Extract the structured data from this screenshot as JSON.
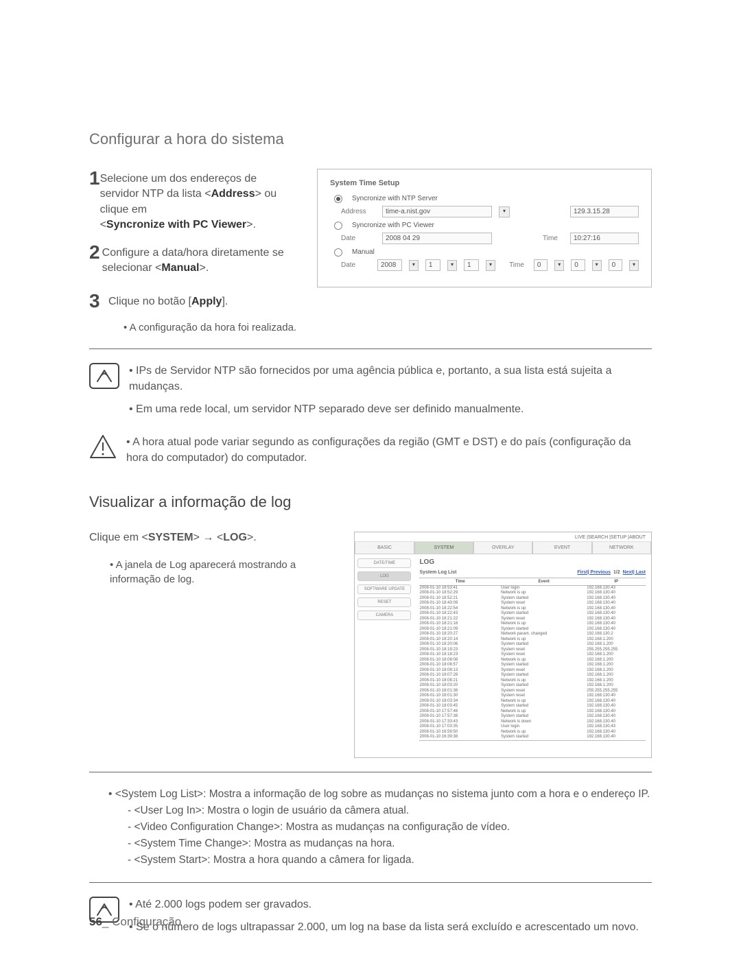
{
  "section1_title": "Configurar a hora do sistema",
  "step1": "Selecione um dos endereços de servidor NTP da lista <",
  "step1b": "Address",
  "step1c": "> ou clique em",
  "step1d": "<",
  "step1e": "Syncronize with PC Viewer",
  "step1f": ">.",
  "step2a": "Configure a data/hora diretamente se selecionar <",
  "step2b": "Manual",
  "step2c": ">.",
  "step3a": "Clique no botão [",
  "step3b": "Apply",
  "step3c": "].",
  "step3_bullet": "A configuração da hora foi realizada.",
  "panel": {
    "title": "System Time Setup",
    "ntp": "Syncronize with NTP Server",
    "addr_lbl": "Address",
    "addr_val": "time-a.nist.gov",
    "addr_ip": "129.3.15.28",
    "pc": "Syncronize with PC Viewer",
    "date_lbl": "Date",
    "date_val": "2008 04 29",
    "time_lbl": "Time",
    "time_val": "10:27:16",
    "manual": "Manual",
    "m_date": "2008",
    "m_1": "1",
    "m_2": "1",
    "m_t0": "0",
    "m_t1": "0",
    "m_t2": "0"
  },
  "note1_a": "IPs de Servidor NTP são fornecidos por uma agência pública e, portanto, a sua lista está sujeita a mudanças.",
  "note1_b": "Em uma rede local, um servidor NTP separado deve ser definido manualmente.",
  "warn": "A hora atual pode variar segundo as configurações da região (GMT e DST) e do país (configuração da hora do computador) do computador.",
  "section2_title": "Visualizar a informação de log",
  "sys_path_a": "Clique em <",
  "sys_path_b": "SYSTEM",
  "sys_path_c": "> ",
  "sys_path_arrow": "→",
  "sys_path_d": " <",
  "sys_path_e": "LOG",
  "sys_path_f": ">.",
  "log_bullet": "A janela de Log aparecerá mostrando a informação de log.",
  "log": {
    "topnav": "LIVE |SEARCH |SETUP |ABOUT",
    "tabs": [
      "BASIC",
      "SYSTEM",
      "OVERLAY",
      "EVENT",
      "NETWORK"
    ],
    "side": [
      "DATE/TIME",
      "LOG",
      "SOFTWARE UPDATE",
      "RESET",
      "CAMERA"
    ],
    "h": "LOG",
    "sub": "System Log List",
    "first": "First| Previous",
    "scroll": "1/2",
    "last": "Next| Last",
    "th": [
      "Time",
      "Event",
      "IP"
    ],
    "rows": [
      [
        "2008-01-10 18:53:41",
        "User login",
        "192.168.130.43"
      ],
      [
        "2008-01-10 18:52:29",
        "Network is up",
        "192.168.130.40"
      ],
      [
        "2008-01-10 18:52:21",
        "System started",
        "192.168.130.40"
      ],
      [
        "2008-01-10 18:43:09",
        "System reset",
        "192.168.130.40"
      ],
      [
        "2008-01-10 18:22:54",
        "Network is up",
        "192.168.130.40"
      ],
      [
        "2008-01-10 18:22:43",
        "System started",
        "192.168.130.40"
      ],
      [
        "2008-01-10 18:21:22",
        "System reset",
        "192.168.130.40"
      ],
      [
        "2008-01-10 18:21:18",
        "Network is up",
        "192.168.130.40"
      ],
      [
        "2008-01-10 18:21:09",
        "System started",
        "192.168.130.40"
      ],
      [
        "2008-01-10 18:20:27",
        "Network param. changed",
        "192.168.130.2"
      ],
      [
        "2008-01-10 18:20:14",
        "Network is up",
        "192.168.1.200"
      ],
      [
        "2008-01-10 18:20:06",
        "System started",
        "192.168.1.200"
      ],
      [
        "2008-01-10 18:19:23",
        "System reset",
        "255.255.255.255"
      ],
      [
        "2008-01-10 18:18:23",
        "System reset",
        "192.168.1.200"
      ],
      [
        "2008-01-10 18:08:08",
        "Network is up",
        "192.168.1.200"
      ],
      [
        "2008-01-10 18:08:57",
        "System started",
        "192.168.1.200"
      ],
      [
        "2008-01-10 18:08:13",
        "System reset",
        "192.168.1.200"
      ],
      [
        "2008-01-10 18:07:28",
        "System started",
        "192.168.1.200"
      ],
      [
        "2008-01-10 18:08:21",
        "Network is up",
        "192.168.1.200"
      ],
      [
        "2008-01-10 18:03:20",
        "System started",
        "192.168.1.200"
      ],
      [
        "2008-01-10 18:01:36",
        "System reset",
        "255.255.255.255"
      ],
      [
        "2008-01-10 18:01:30",
        "System reset",
        "192.168.130.40"
      ],
      [
        "2008-01-10 18:03:34",
        "Network is up",
        "192.168.130.40"
      ],
      [
        "2008-01-10 18:03:45",
        "System started",
        "192.168.130.40"
      ],
      [
        "2008-01-10 17:57:46",
        "Network is up",
        "192.168.130.40"
      ],
      [
        "2008-01-10 17:57:38",
        "System started",
        "192.168.130.40"
      ],
      [
        "2008-01-10 17:33:43",
        "Network is down",
        "192.168.130.40"
      ],
      [
        "2008-01-10 17:03:35",
        "User login",
        "192.168.130.43"
      ],
      [
        "2008-01-10 16:59:50",
        "Network is up",
        "192.168.130.40"
      ],
      [
        "2008-01-10 16:39:38",
        "System started",
        "192.168.130.40"
      ]
    ]
  },
  "def_intro": "<System Log List>: Mostra a informação de log sobre as mudanças no sistema junto com a hora e o endereço IP.",
  "def1": "<User Log In>: Mostra o login de usuário da câmera atual.",
  "def2": "<Video Configuration Change>: Mostra as mudanças na configuração de vídeo.",
  "def3": "<System Time Change>: Mostra as mudanças na hora.",
  "def4": "<System Start>: Mostra a hora quando a câmera for ligada.",
  "note2_a": "Até 2.000 logs podem ser gravados.",
  "note2_b": "Se o número de logs ultrapassar 2.000, um log na base da lista será excluído e acrescentado um novo.",
  "pgnum": "56",
  "pgsec": "_ Configuração"
}
